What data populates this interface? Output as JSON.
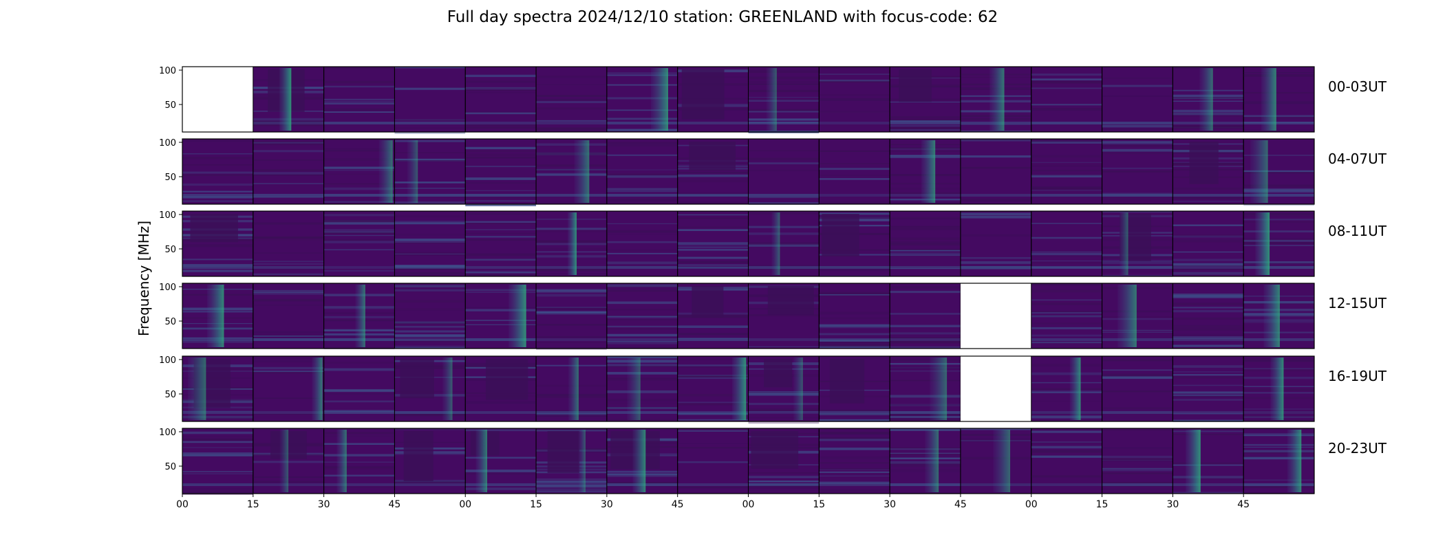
{
  "title": "Full day spectra 2024/12/10 station: GREENLAND with focus-code: 62",
  "chart_data": {
    "type": "heatmap",
    "title": "Full day spectra 2024/12/10 station: GREENLAND with focus-code: 62",
    "ylabel": "Frequency [MHz]",
    "xlabel": "",
    "ylim": [
      10,
      105
    ],
    "yticks": [
      50,
      100
    ],
    "colormap": "viridis",
    "xtick_labels": [
      "00",
      "15",
      "30",
      "45",
      "00",
      "15",
      "30",
      "45",
      "00",
      "15",
      "30",
      "45",
      "00",
      "15",
      "30",
      "45"
    ],
    "panels_per_row": 16,
    "panel_duration_minutes": 15,
    "grid": false,
    "rows": [
      {
        "label": "00-03UT",
        "missing_panels": [
          0
        ]
      },
      {
        "label": "04-07UT",
        "missing_panels": []
      },
      {
        "label": "08-11UT",
        "missing_panels": []
      },
      {
        "label": "12-15UT",
        "missing_panels": [
          11
        ]
      },
      {
        "label": "16-19UT",
        "missing_panels": [
          11
        ]
      },
      {
        "label": "20-23UT",
        "missing_panels": []
      }
    ]
  },
  "colors": {
    "background": "#440a61",
    "dark_band": "#3b0f57",
    "mid": "#3e4f8a",
    "bright": "#2fb47c",
    "teal": "#2a9a8c"
  }
}
